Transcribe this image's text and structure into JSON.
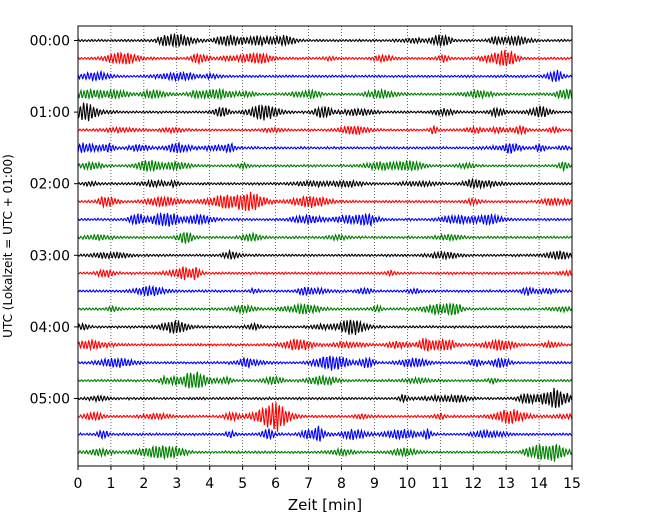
{
  "chart_data": {
    "type": "line",
    "title": "",
    "xlabel": "Zeit  [min]",
    "ylabel": "UTC (Lokalzeit = UTC + 01:00)",
    "xlim": [
      0,
      15
    ],
    "x_ticks": [
      0,
      1,
      2,
      3,
      4,
      5,
      6,
      7,
      8,
      9,
      10,
      11,
      12,
      13,
      14,
      15
    ],
    "y_tick_labels": [
      "00:00",
      "01:00",
      "02:00",
      "03:00",
      "04:00",
      "05:00"
    ],
    "grid": "vertical dotted",
    "trace_interval_minutes": 15,
    "trace_colors": [
      "#000000",
      "#ff0000",
      "#0000ff",
      "#008000"
    ],
    "trace_count": 24
  }
}
